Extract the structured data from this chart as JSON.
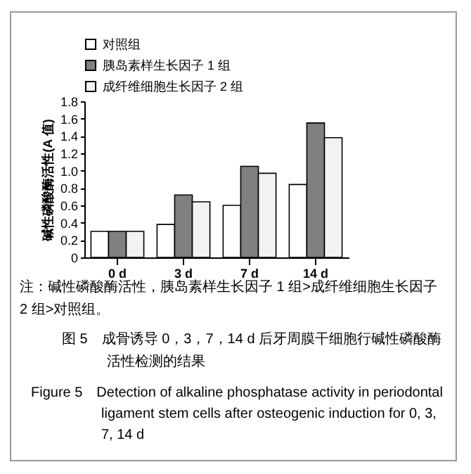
{
  "chart_data": {
    "type": "bar",
    "title": "图 5　成骨诱导 0，3，7，14 d 后牙周膜干细胞行碱性磷酸酶活性检测的结果",
    "subtitle": "Figure 5　Detection of alkaline phosphatase activity in periodontal ligament stem cells after osteogenic induction for 0, 3, 7, 14 d",
    "annotations": [
      "注：碱性磷酸酶活性，胰岛素样生长因子 1 组>成纤维细胞生长因子 2 组>对照组。"
    ],
    "ylabel": "碱性磷酸酶活性(A 值)",
    "categories": [
      "0 d",
      "3 d",
      "7 d",
      "14 d"
    ],
    "series": [
      {
        "name": "对照组",
        "color": "#ffffff",
        "values": [
          0.3,
          0.38,
          0.6,
          0.84
        ]
      },
      {
        "name": "胰岛素样生长因子 1 组",
        "color": "#808080",
        "values": [
          0.3,
          0.72,
          1.05,
          1.55
        ]
      },
      {
        "name": "成纤维细胞生长因子 2 组",
        "color": "#f2f2f2",
        "values": [
          0.3,
          0.64,
          0.97,
          1.38
        ]
      }
    ],
    "ylim": [
      0,
      1.8
    ],
    "yticks": [
      0,
      0.2,
      0.4,
      0.6,
      0.8,
      {
        "value": 1,
        "label": "1.0"
      },
      1.2,
      1.4,
      1.6,
      1.8
    ],
    "grid": false,
    "legend": "top"
  }
}
